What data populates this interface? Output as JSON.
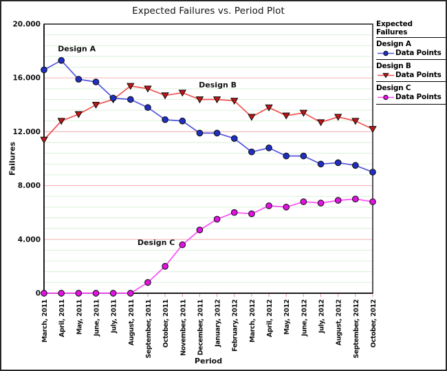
{
  "legend": {
    "heading": "Expected Failures",
    "entries": [
      {
        "name": "Design A",
        "label": "Data Points"
      },
      {
        "name": "Design B",
        "label": "Data Points"
      },
      {
        "name": "Design C",
        "label": "Data Points"
      }
    ],
    "position": "right"
  },
  "chart_data": {
    "type": "line",
    "title": "Expected Failures vs. Period Plot",
    "xlabel": "Period",
    "ylabel": "Failures",
    "ylim": [
      0,
      20
    ],
    "y_major_ticks": [
      {
        "value": 20,
        "label": "20.000"
      },
      {
        "value": 16,
        "label": "16.000"
      },
      {
        "value": 12,
        "label": "12.000"
      },
      {
        "value": 8,
        "label": "8.000"
      },
      {
        "value": 4,
        "label": "4.000"
      },
      {
        "value": 0,
        "label": "0"
      }
    ],
    "grid": {
      "major_step": 4,
      "minor_step": 0.8,
      "major_color": "#f5baba",
      "minor_color": "#d9efd9"
    },
    "axis_color": "#1c1c1c",
    "tick_color": "#ef8f8f",
    "categories": [
      "March, 2011",
      "April, 2011",
      "May, 2011",
      "June, 2011",
      "July, 2011",
      "August, 2011",
      "September, 2011",
      "October, 2011",
      "November, 2011",
      "December, 2011",
      "January, 2012",
      "February, 2012",
      "March, 2012",
      "April, 2012",
      "May, 2012",
      "June, 2012",
      "July, 2012",
      "August, 2012",
      "September, 2012",
      "October, 2012"
    ],
    "series": [
      {
        "name": "Design B",
        "marker": "triangle-down",
        "line_color": "#ef5050",
        "marker_color": "#c81414",
        "values": [
          11.4,
          12.8,
          13.3,
          14.0,
          14.4,
          15.4,
          15.2,
          14.7,
          14.9,
          14.4,
          14.4,
          14.3,
          13.1,
          13.8,
          13.2,
          13.4,
          12.7,
          13.1,
          12.8,
          12.2
        ]
      },
      {
        "name": "Design A",
        "marker": "circle",
        "line_color": "#5353de",
        "marker_color": "#1f2fc4",
        "values": [
          16.6,
          17.3,
          15.9,
          15.7,
          14.5,
          14.4,
          13.8,
          12.9,
          12.8,
          11.9,
          11.9,
          11.5,
          10.5,
          10.8,
          10.2,
          10.2,
          9.6,
          9.7,
          9.5,
          9.0
        ]
      },
      {
        "name": "Design C",
        "marker": "circle",
        "line_color": "#fb4cfb",
        "marker_color": "#e213e2",
        "values": [
          0,
          0,
          0,
          0,
          0,
          0,
          0.8,
          2.0,
          3.6,
          4.7,
          5.5,
          6.0,
          5.9,
          6.5,
          6.4,
          6.8,
          6.7,
          6.9,
          7.0,
          6.8
        ]
      }
    ],
    "annotations": [
      {
        "text": "Design A",
        "x_index": 0.8,
        "y": 18.4
      },
      {
        "text": "Design B",
        "x_index": 8.95,
        "y": 15.7
      },
      {
        "text": "Design C",
        "x_index": 5.4,
        "y": 4.0
      }
    ],
    "legend_position": "right"
  }
}
